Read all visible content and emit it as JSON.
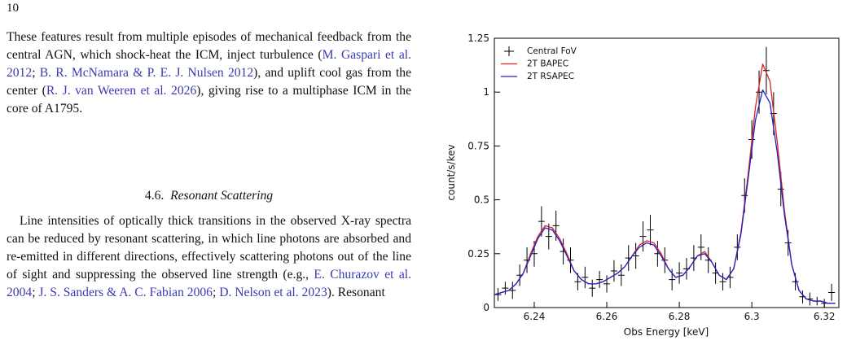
{
  "page_number": "10",
  "paragraphs": [
    {
      "segments": [
        {
          "text": "These features result from multiple episodes of mechanical feedback from the central AGN, which shock-heat the ICM, inject turbulence (",
          "cite": false
        },
        {
          "text": "M. Gaspari et al. 2012",
          "cite": true
        },
        {
          "text": "; ",
          "cite": false
        },
        {
          "text": "B. R. McNamara & P. E. J. Nulsen 2012",
          "cite": true
        },
        {
          "text": "), and uplift cool gas from the center (",
          "cite": false
        },
        {
          "text": "R. J. van Weeren et al. 2026",
          "cite": true
        },
        {
          "text": "), giving rise to a multiphase ICM in the core of A1795.",
          "cite": false
        }
      ]
    },
    {
      "segments": [
        {
          "text": "Line intensities of optically thick transitions in the observed X-ray spectra can be reduced by resonant scattering, in which line photons are absorbed and re-emitted in different directions, effectively scattering photons out of the line of sight and suppressing the observed line strength (e.g., ",
          "cite": false
        },
        {
          "text": "E. Churazov et al. 2004",
          "cite": true
        },
        {
          "text": "; ",
          "cite": false
        },
        {
          "text": "J. S. Sanders & A. C. Fabian 2006",
          "cite": true
        },
        {
          "text": "; ",
          "cite": false
        },
        {
          "text": "D. Nelson et al. 2023",
          "cite": true
        },
        {
          "text": "). Resonant",
          "cite": false
        }
      ]
    }
  ],
  "section_heading": {
    "number": "4.6.",
    "title": "Resonant Scattering"
  },
  "chart_data": {
    "type": "line",
    "x_label": "Obs Energy [keV]",
    "y_label": "count/s/kev",
    "xlim": [
      6.229,
      6.324
    ],
    "ylim": [
      0,
      1.25
    ],
    "xticks": [
      6.24,
      6.26,
      6.28,
      6.3,
      6.32
    ],
    "yticks": [
      0,
      0.25,
      0.5,
      0.75,
      1,
      1.25
    ],
    "legend": "upper left",
    "series": [
      {
        "name": "Central FoV",
        "color": "#000000",
        "style": "points",
        "x": [
          6.23,
          6.232,
          6.234,
          6.236,
          6.238,
          6.24,
          6.242,
          6.244,
          6.246,
          6.248,
          6.25,
          6.252,
          6.254,
          6.256,
          6.258,
          6.26,
          6.262,
          6.264,
          6.266,
          6.268,
          6.27,
          6.272,
          6.274,
          6.276,
          6.278,
          6.28,
          6.282,
          6.284,
          6.286,
          6.288,
          6.29,
          6.292,
          6.294,
          6.296,
          6.298,
          6.3,
          6.302,
          6.304,
          6.306,
          6.308,
          6.31,
          6.312,
          6.314,
          6.316,
          6.318,
          6.32,
          6.322
        ],
        "values": [
          0.06,
          0.09,
          0.08,
          0.15,
          0.22,
          0.25,
          0.4,
          0.33,
          0.38,
          0.26,
          0.22,
          0.12,
          0.14,
          0.09,
          0.13,
          0.11,
          0.17,
          0.15,
          0.23,
          0.24,
          0.33,
          0.36,
          0.25,
          0.22,
          0.13,
          0.16,
          0.18,
          0.23,
          0.28,
          0.22,
          0.16,
          0.12,
          0.14,
          0.28,
          0.52,
          0.78,
          1.0,
          1.1,
          0.9,
          0.55,
          0.3,
          0.12,
          0.05,
          0.04,
          0.03,
          0.02,
          0.07
        ],
        "errors": [
          0.03,
          0.03,
          0.04,
          0.05,
          0.06,
          0.06,
          0.07,
          0.06,
          0.07,
          0.06,
          0.06,
          0.04,
          0.05,
          0.04,
          0.04,
          0.04,
          0.05,
          0.05,
          0.06,
          0.06,
          0.07,
          0.07,
          0.06,
          0.06,
          0.05,
          0.05,
          0.05,
          0.06,
          0.06,
          0.06,
          0.05,
          0.04,
          0.05,
          0.06,
          0.08,
          0.09,
          0.1,
          0.11,
          0.1,
          0.08,
          0.06,
          0.04,
          0.03,
          0.03,
          0.02,
          0.02,
          0.04
        ]
      },
      {
        "name": "2T BAPEC",
        "color": "#e02020",
        "style": "line",
        "x": [
          6.229,
          6.231,
          6.233,
          6.235,
          6.237,
          6.239,
          6.241,
          6.243,
          6.245,
          6.247,
          6.249,
          6.251,
          6.253,
          6.255,
          6.257,
          6.259,
          6.261,
          6.263,
          6.265,
          6.267,
          6.269,
          6.271,
          6.273,
          6.275,
          6.277,
          6.279,
          6.281,
          6.283,
          6.285,
          6.287,
          6.289,
          6.291,
          6.293,
          6.295,
          6.297,
          6.299,
          6.301,
          6.303,
          6.305,
          6.307,
          6.309,
          6.311,
          6.313,
          6.315,
          6.317,
          6.319,
          6.321,
          6.323
        ],
        "values": [
          0.06,
          0.07,
          0.08,
          0.11,
          0.16,
          0.25,
          0.33,
          0.38,
          0.37,
          0.32,
          0.25,
          0.17,
          0.13,
          0.11,
          0.11,
          0.12,
          0.14,
          0.16,
          0.19,
          0.24,
          0.29,
          0.31,
          0.3,
          0.25,
          0.18,
          0.14,
          0.15,
          0.19,
          0.24,
          0.26,
          0.21,
          0.15,
          0.13,
          0.18,
          0.35,
          0.62,
          0.93,
          1.13,
          1.05,
          0.77,
          0.45,
          0.2,
          0.08,
          0.04,
          0.03,
          0.03,
          0.02,
          0.02
        ]
      },
      {
        "name": "2T RSAPEC",
        "color": "#2020c8",
        "style": "line",
        "x": [
          6.229,
          6.231,
          6.233,
          6.235,
          6.237,
          6.239,
          6.241,
          6.243,
          6.245,
          6.247,
          6.249,
          6.251,
          6.253,
          6.255,
          6.257,
          6.259,
          6.261,
          6.263,
          6.265,
          6.267,
          6.269,
          6.271,
          6.273,
          6.275,
          6.277,
          6.279,
          6.281,
          6.283,
          6.285,
          6.287,
          6.289,
          6.291,
          6.293,
          6.295,
          6.297,
          6.299,
          6.301,
          6.303,
          6.305,
          6.307,
          6.309,
          6.311,
          6.313,
          6.315,
          6.317,
          6.319,
          6.321,
          6.323
        ],
        "values": [
          0.06,
          0.07,
          0.08,
          0.11,
          0.16,
          0.24,
          0.32,
          0.37,
          0.36,
          0.31,
          0.24,
          0.17,
          0.13,
          0.11,
          0.11,
          0.12,
          0.14,
          0.16,
          0.19,
          0.24,
          0.28,
          0.3,
          0.29,
          0.24,
          0.18,
          0.14,
          0.15,
          0.19,
          0.24,
          0.25,
          0.21,
          0.15,
          0.13,
          0.18,
          0.34,
          0.6,
          0.87,
          1.01,
          0.95,
          0.72,
          0.43,
          0.2,
          0.08,
          0.04,
          0.03,
          0.03,
          0.02,
          0.02
        ]
      }
    ]
  }
}
